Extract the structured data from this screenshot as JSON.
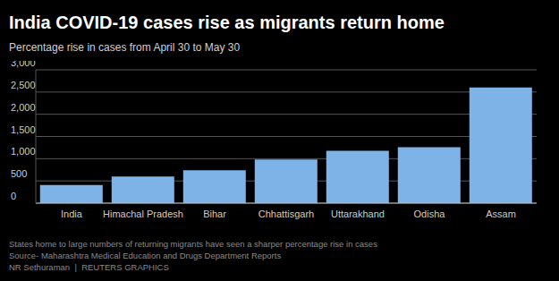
{
  "chart_data": {
    "type": "bar",
    "title": "India COVID-19 cases rise as migrants return home",
    "subtitle": "Percentage rise in cases from April 30 to May 30",
    "categories": [
      "India",
      "Himachal Pradesh",
      "Bihar",
      "Chhattisgarh",
      "Uttarakhand",
      "Odisha",
      "Assam"
    ],
    "values": [
      410,
      600,
      740,
      980,
      1180,
      1260,
      2600
    ],
    "color": "#7eb3e8",
    "ylim": [
      0,
      3000
    ],
    "yticks": [
      0,
      500,
      {
        "value": 1000,
        "label": "1,000"
      },
      {
        "value": 1500,
        "label": "1,500"
      },
      {
        "value": 2000,
        "label": "2,000"
      },
      {
        "value": 2500,
        "label": "2,500"
      },
      {
        "value": 3000,
        "label": "3,000"
      }
    ],
    "grid": true,
    "annotations": [
      "States home to large numbers of returning migrants have seen a sharper percentage rise in cases",
      "Source- Maharashtra Medical Education and Drugs Department Reports",
      "NR Sethuraman  |  REUTERS GRAPHICS"
    ]
  }
}
